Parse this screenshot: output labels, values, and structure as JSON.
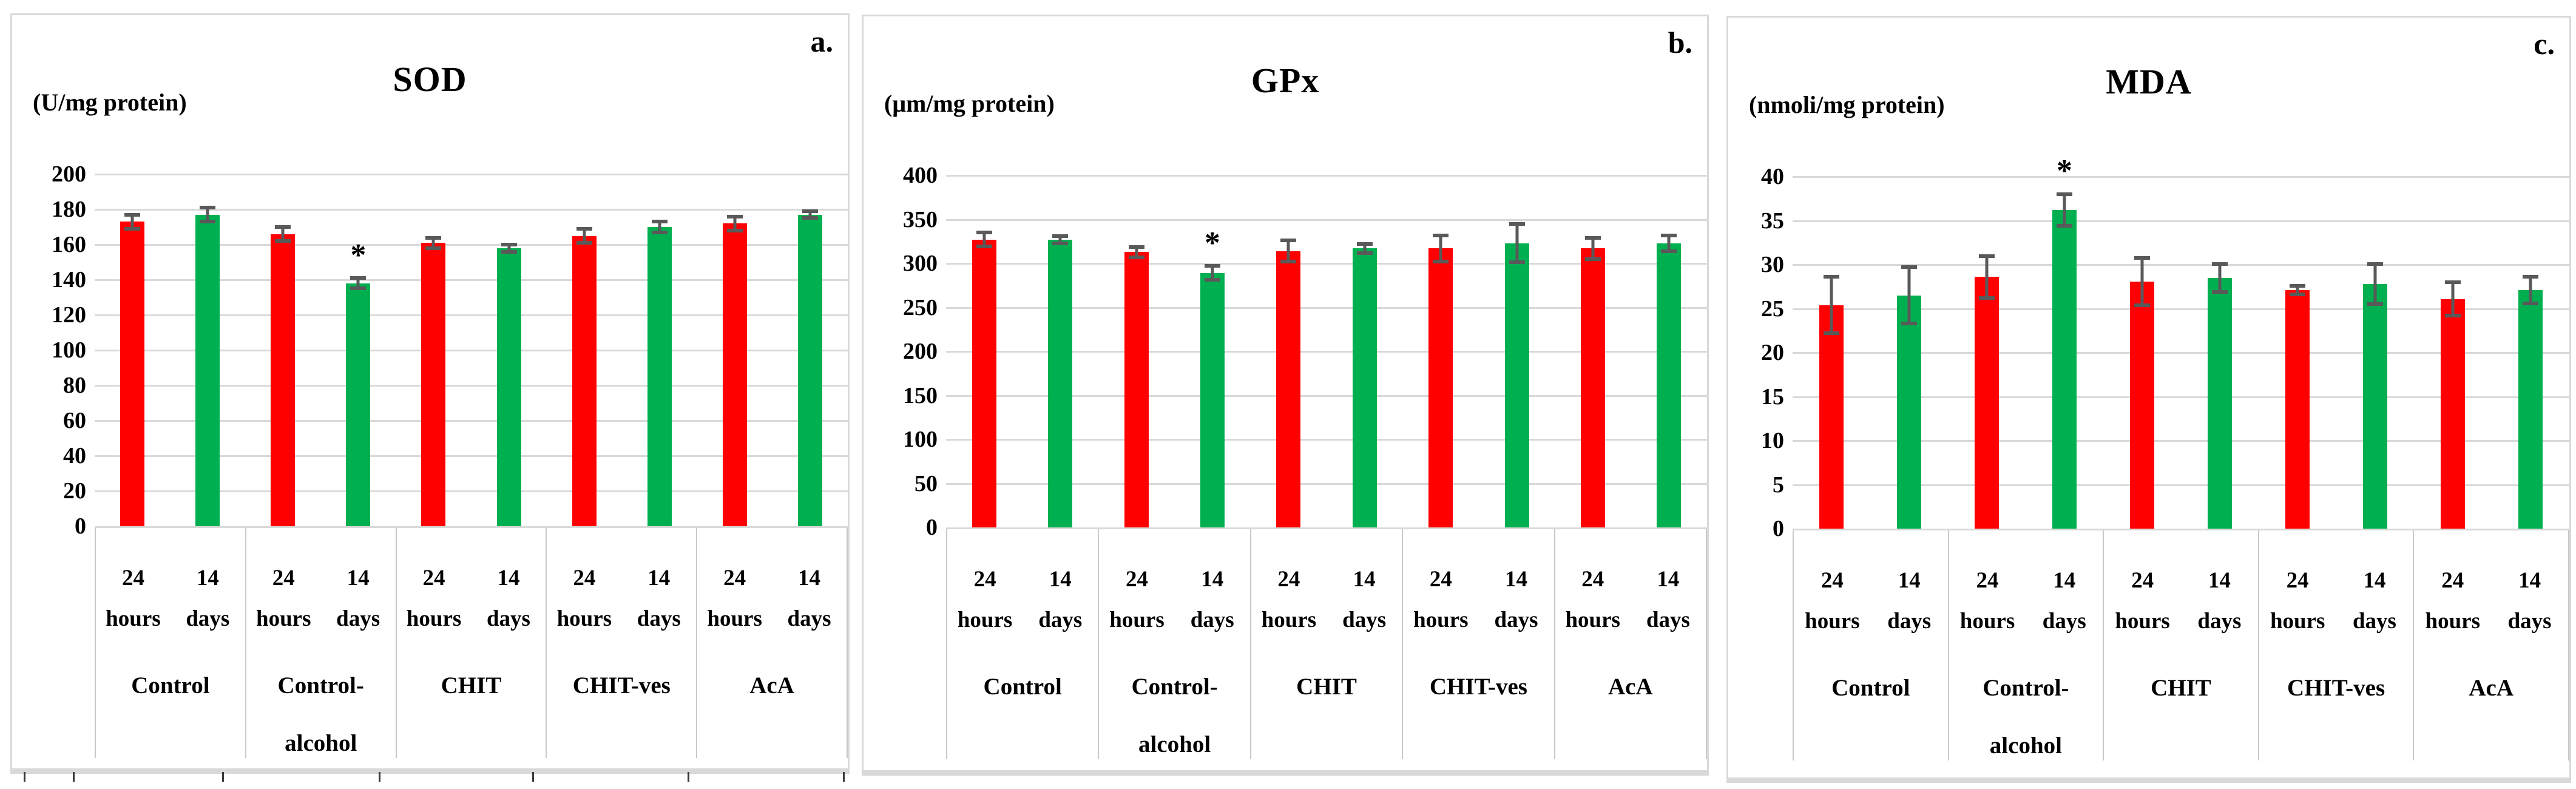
{
  "figure": {
    "panel_letters": [
      "a.",
      "b.",
      "c."
    ],
    "series_colors": {
      "24 hours": "#FF0000",
      "14 days": "#00B050"
    },
    "error_bar_color": "#595959",
    "gridline_color": "#D9D9D9",
    "background": "#FFFFFF"
  },
  "chart_data": [
    {
      "type": "bar",
      "panel_letter": "a.",
      "title": "SOD",
      "ylabel": "(U/mg protein)",
      "xlabel": "",
      "ylim": [
        0,
        200
      ],
      "ytick_step": 20,
      "yticks": [
        0,
        20,
        40,
        60,
        80,
        100,
        120,
        140,
        160,
        180,
        200
      ],
      "grid": true,
      "legend_position": "none",
      "categories": [
        "Control",
        "Control-alcohol",
        "CHIT",
        "CHIT-ves",
        "AcA"
      ],
      "category_label_lines": [
        [
          "Control"
        ],
        [
          "Control-",
          "alcohol"
        ],
        [
          "CHIT"
        ],
        [
          "CHIT-ves"
        ],
        [
          "AcA"
        ]
      ],
      "subcategory_labels": [
        [
          "24",
          "hours"
        ],
        [
          "14",
          "days"
        ]
      ],
      "series": [
        {
          "name": "24 hours",
          "color": "#FF0000",
          "values": [
            173,
            166,
            161,
            165,
            172
          ],
          "errors": [
            5,
            5,
            4,
            5,
            5
          ]
        },
        {
          "name": "14 days",
          "color": "#00B050",
          "values": [
            177,
            138,
            158,
            170,
            177
          ],
          "errors": [
            5,
            4,
            3,
            4,
            3
          ]
        }
      ],
      "significance_markers": [
        {
          "category_index": 1,
          "series_index": 1,
          "marker": "*"
        }
      ]
    },
    {
      "type": "bar",
      "panel_letter": "b.",
      "title": "GPx",
      "ylabel": "(μm/mg protein)",
      "xlabel": "",
      "ylim": [
        0,
        400
      ],
      "ytick_step": 50,
      "yticks": [
        0,
        50,
        100,
        150,
        200,
        250,
        300,
        350,
        400
      ],
      "grid": true,
      "legend_position": "none",
      "categories": [
        "Control",
        "Control-alcohol",
        "CHIT",
        "CHIT-ves",
        "AcA"
      ],
      "category_label_lines": [
        [
          "Control"
        ],
        [
          "Control-",
          "alcohol"
        ],
        [
          "CHIT"
        ],
        [
          "CHIT-ves"
        ],
        [
          "AcA"
        ]
      ],
      "subcategory_labels": [
        [
          "24",
          "hours"
        ],
        [
          "14",
          "days"
        ]
      ],
      "series": [
        {
          "name": "24 hours",
          "color": "#FF0000",
          "values": [
            327,
            313,
            314,
            317,
            317
          ],
          "errors": [
            10,
            8,
            14,
            17,
            14
          ]
        },
        {
          "name": "14 days",
          "color": "#00B050",
          "values": [
            327,
            289,
            317,
            323,
            323
          ],
          "errors": [
            6,
            10,
            7,
            24,
            11
          ]
        }
      ],
      "significance_markers": [
        {
          "category_index": 1,
          "series_index": 1,
          "marker": "*"
        }
      ]
    },
    {
      "type": "bar",
      "panel_letter": "c.",
      "title": "MDA",
      "ylabel": "(nmoli/mg protein)",
      "xlabel": "",
      "ylim": [
        0,
        40
      ],
      "ytick_step": 5,
      "yticks": [
        0,
        5,
        10,
        15,
        20,
        25,
        30,
        35,
        40
      ],
      "grid": true,
      "legend_position": "none",
      "categories": [
        "Control",
        "Control-alcohol",
        "CHIT",
        "CHIT-ves",
        "AcA"
      ],
      "category_label_lines": [
        [
          "Control"
        ],
        [
          "Control-",
          "alcohol"
        ],
        [
          "CHIT"
        ],
        [
          "CHIT-ves"
        ],
        [
          "AcA"
        ]
      ],
      "subcategory_labels": [
        [
          "24",
          "hours"
        ],
        [
          "14",
          "days"
        ]
      ],
      "series": [
        {
          "name": "24 hours",
          "color": "#FF0000",
          "values": [
            25.4,
            28.6,
            28.1,
            27.1,
            26.1
          ],
          "errors": [
            3.4,
            2.6,
            2.9,
            0.7,
            2.1
          ]
        },
        {
          "name": "14 days",
          "color": "#00B050",
          "values": [
            26.5,
            36.2,
            28.5,
            27.8,
            27.1
          ],
          "errors": [
            3.4,
            2.0,
            1.8,
            2.5,
            1.7
          ]
        }
      ],
      "significance_markers": [
        {
          "category_index": 1,
          "series_index": 1,
          "marker": "*"
        }
      ]
    }
  ]
}
